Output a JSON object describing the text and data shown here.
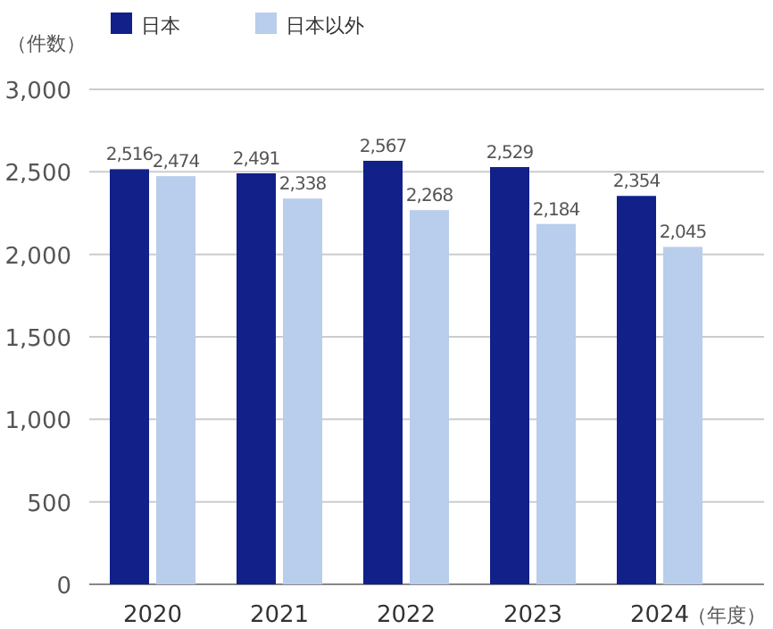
{
  "chart_data": {
    "type": "bar",
    "ylabel": "（件数）",
    "xlabel": "（年度）",
    "categories": [
      "2020",
      "2021",
      "2022",
      "2023",
      "2024"
    ],
    "series": [
      {
        "name": "日本",
        "color": "#12208a",
        "values": [
          2516,
          2491,
          2567,
          2529,
          2354
        ],
        "value_labels": [
          "2,516",
          "2,491",
          "2,567",
          "2,529",
          "2,354"
        ]
      },
      {
        "name": "日本以外",
        "color": "#b9cdec",
        "values": [
          2474,
          2338,
          2268,
          2184,
          2045
        ],
        "value_labels": [
          "2,474",
          "2,338",
          "2,268",
          "2,184",
          "2,045"
        ]
      }
    ],
    "ylim": [
      0,
      3000
    ],
    "yticks": [
      {
        "value": 0,
        "label": "0"
      },
      {
        "value": 500,
        "label": "500"
      },
      {
        "value": 1000,
        "label": "1,000"
      },
      {
        "value": 1500,
        "label": "1,500"
      },
      {
        "value": 2000,
        "label": "2,000"
      },
      {
        "value": 2500,
        "label": "2,500"
      },
      {
        "value": 3000,
        "label": "3,000"
      }
    ],
    "grid": "y",
    "legend": "top left"
  }
}
